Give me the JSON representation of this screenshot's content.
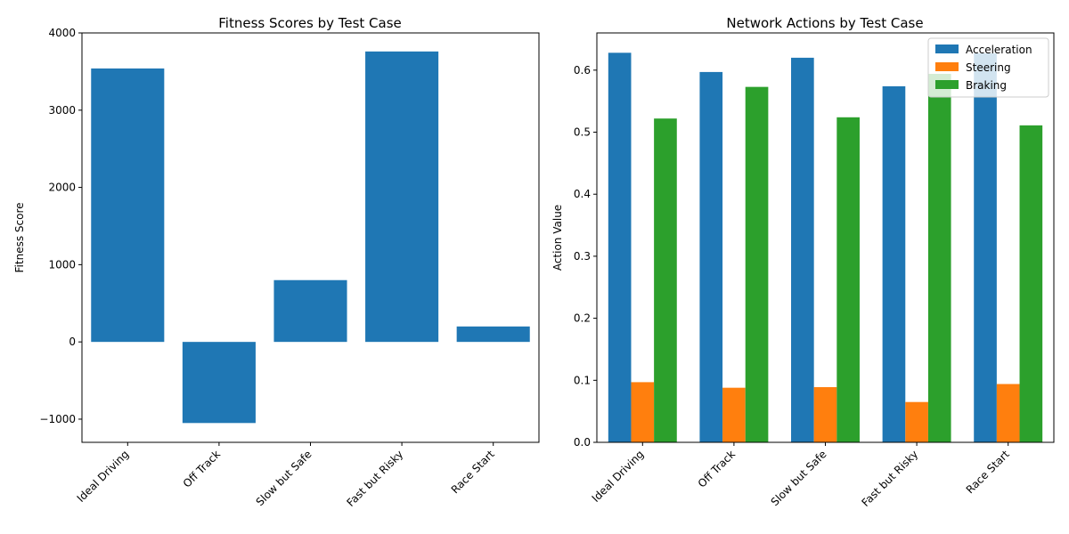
{
  "chart_data": [
    {
      "type": "bar",
      "title": "Fitness Scores by Test Case",
      "xlabel": "",
      "ylabel": "Fitness Score",
      "categories": [
        "Ideal Driving",
        "Off Track",
        "Slow but Safe",
        "Fast but Risky",
        "Race Start"
      ],
      "values": [
        3540,
        -1050,
        800,
        3760,
        200
      ],
      "ylim": [
        -1300,
        4000
      ],
      "yticks": [
        -1000,
        0,
        1000,
        2000,
        3000,
        4000
      ],
      "ytick_labels": [
        "−1000",
        "0",
        "1000",
        "2000",
        "3000",
        "4000"
      ],
      "color": "#1f77b4",
      "grid": false
    },
    {
      "type": "bar",
      "title": "Network Actions by Test Case",
      "xlabel": "",
      "ylabel": "Action Value",
      "categories": [
        "Ideal Driving",
        "Off Track",
        "Slow but Safe",
        "Fast but Risky",
        "Race Start"
      ],
      "series": [
        {
          "name": "Acceleration",
          "color": "#1f77b4",
          "values": [
            0.628,
            0.597,
            0.62,
            0.574,
            0.627
          ]
        },
        {
          "name": "Steering",
          "color": "#ff7f0e",
          "values": [
            0.097,
            0.088,
            0.089,
            0.065,
            0.094
          ]
        },
        {
          "name": "Braking",
          "color": "#2ca02c",
          "values": [
            0.522,
            0.573,
            0.524,
            0.594,
            0.511
          ]
        }
      ],
      "ylim": [
        0,
        0.66
      ],
      "yticks": [
        0.0,
        0.1,
        0.2,
        0.3,
        0.4,
        0.5,
        0.6
      ],
      "ytick_labels": [
        "0.0",
        "0.1",
        "0.2",
        "0.3",
        "0.4",
        "0.5",
        "0.6"
      ],
      "legend": "top-right",
      "grid": false
    }
  ]
}
